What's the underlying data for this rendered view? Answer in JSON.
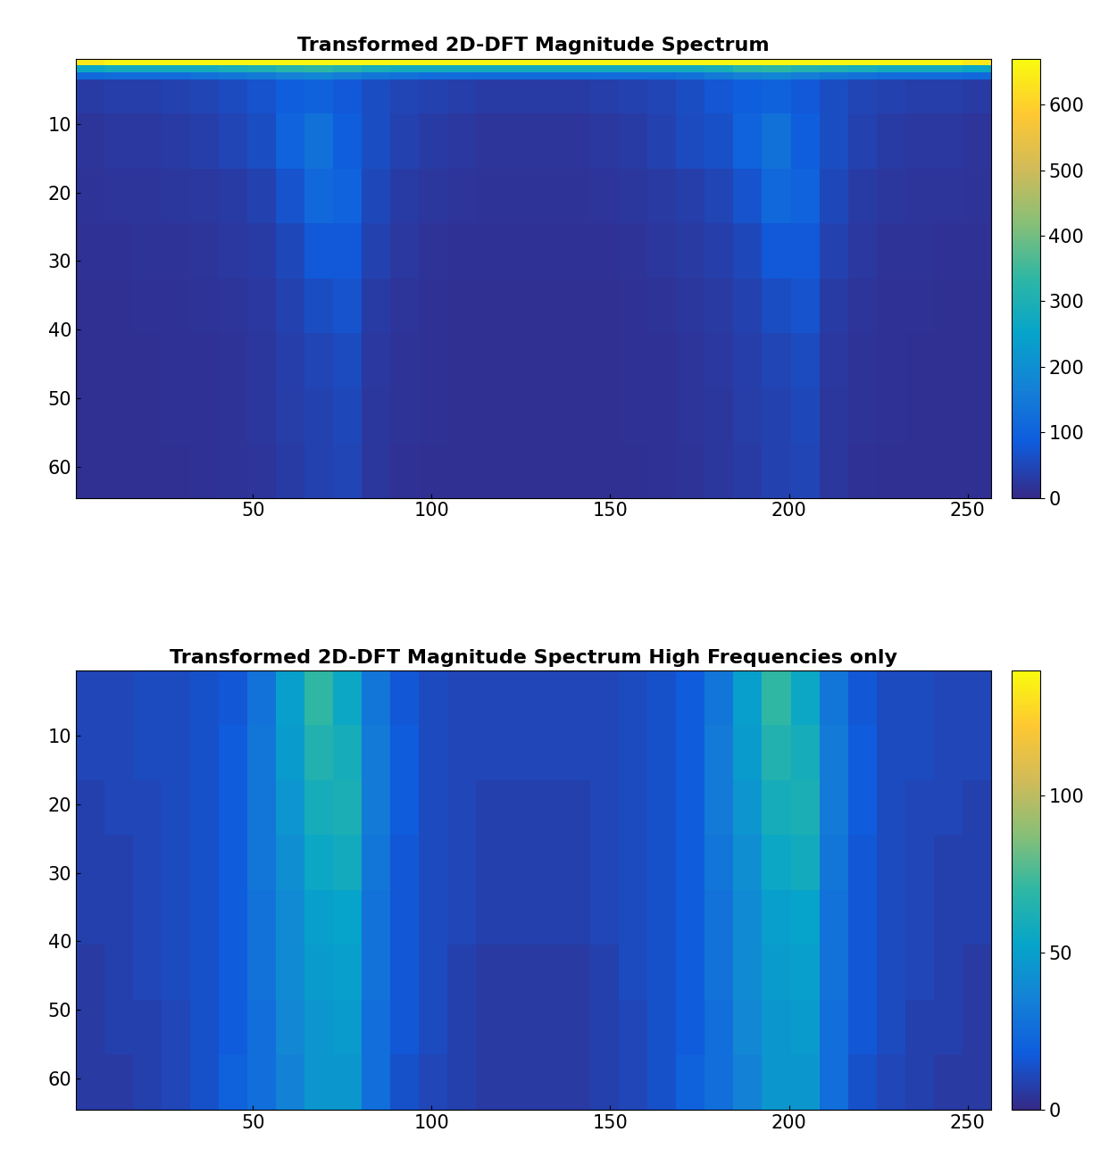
{
  "chart_data": [
    {
      "type": "heatmap",
      "title": "Transformed 2D-DFT Magnitude Spectrum",
      "xlim": [
        0.5,
        256.5
      ],
      "ylim": [
        64.5,
        0.5
      ],
      "xticks": [
        50,
        100,
        150,
        200,
        250
      ],
      "yticks": [
        10,
        20,
        30,
        40,
        50,
        60
      ],
      "x_edges": [
        0.5,
        8.5,
        16.5,
        24.5,
        32.5,
        40.5,
        48.5,
        56.5,
        64.5,
        72.5,
        80.5,
        88.5,
        96.5,
        104.5,
        112.5,
        120.5,
        128.5,
        136.5,
        144.5,
        152.5,
        160.5,
        168.5,
        176.5,
        184.5,
        192.5,
        200.5,
        208.5,
        216.5,
        224.5,
        232.5,
        240.5,
        248.5,
        256.5
      ],
      "y_edges": [
        0.5,
        1.5,
        2.5,
        3.5,
        8.5,
        16.5,
        24.5,
        32.5,
        40.5,
        48.5,
        56.5,
        64.5
      ],
      "cells": [
        [
          640,
          660,
          660,
          660,
          660,
          660,
          660,
          660,
          660,
          660,
          660,
          660,
          660,
          660,
          660,
          660,
          660,
          660,
          660,
          660,
          660,
          660,
          660,
          660,
          660,
          660,
          660,
          660,
          660,
          660,
          660,
          640
        ],
        [
          260,
          280,
          280,
          280,
          280,
          290,
          300,
          320,
          330,
          310,
          290,
          280,
          280,
          280,
          280,
          280,
          280,
          280,
          280,
          280,
          280,
          280,
          290,
          320,
          330,
          310,
          300,
          290,
          280,
          280,
          280,
          260
        ],
        [
          110,
          120,
          120,
          120,
          130,
          140,
          150,
          170,
          180,
          160,
          140,
          130,
          120,
          120,
          120,
          120,
          120,
          120,
          120,
          120,
          120,
          130,
          150,
          170,
          180,
          160,
          140,
          130,
          120,
          120,
          120,
          110
        ],
        [
          30,
          35,
          35,
          40,
          45,
          55,
          70,
          90,
          95,
          80,
          60,
          45,
          40,
          35,
          30,
          30,
          30,
          30,
          35,
          40,
          45,
          60,
          75,
          90,
          95,
          80,
          60,
          45,
          40,
          35,
          35,
          30
        ],
        [
          20,
          25,
          25,
          30,
          35,
          45,
          60,
          100,
          130,
          90,
          60,
          40,
          30,
          25,
          20,
          20,
          20,
          20,
          25,
          30,
          40,
          55,
          65,
          100,
          130,
          90,
          60,
          40,
          30,
          25,
          25,
          20
        ],
        [
          18,
          20,
          20,
          22,
          25,
          30,
          40,
          70,
          110,
          100,
          50,
          30,
          22,
          20,
          18,
          18,
          18,
          18,
          20,
          22,
          28,
          35,
          45,
          70,
          110,
          100,
          50,
          30,
          22,
          20,
          20,
          18
        ],
        [
          15,
          15,
          18,
          18,
          20,
          25,
          30,
          50,
          80,
          80,
          40,
          25,
          18,
          15,
          15,
          15,
          15,
          15,
          15,
          18,
          22,
          28,
          35,
          50,
          80,
          80,
          40,
          25,
          18,
          18,
          15,
          15
        ],
        [
          12,
          12,
          15,
          15,
          18,
          20,
          25,
          40,
          60,
          70,
          30,
          20,
          15,
          12,
          12,
          12,
          12,
          12,
          12,
          15,
          18,
          22,
          28,
          40,
          60,
          70,
          30,
          20,
          15,
          15,
          12,
          12
        ],
        [
          12,
          12,
          12,
          15,
          15,
          18,
          22,
          35,
          45,
          55,
          25,
          18,
          15,
          12,
          12,
          12,
          12,
          12,
          12,
          15,
          15,
          20,
          25,
          35,
          45,
          55,
          25,
          18,
          15,
          12,
          12,
          12
        ],
        [
          12,
          12,
          12,
          15,
          15,
          18,
          22,
          32,
          40,
          50,
          22,
          18,
          15,
          12,
          12,
          12,
          12,
          12,
          12,
          15,
          15,
          20,
          22,
          32,
          40,
          50,
          22,
          18,
          15,
          12,
          12,
          12
        ],
        [
          12,
          12,
          12,
          12,
          15,
          18,
          20,
          30,
          40,
          45,
          22,
          15,
          12,
          12,
          12,
          12,
          12,
          12,
          12,
          12,
          15,
          18,
          22,
          30,
          40,
          45,
          22,
          15,
          12,
          12,
          12,
          12
        ]
      ],
      "colorbar": {
        "range": [
          0,
          670
        ],
        "ticks": [
          0,
          100,
          200,
          300,
          400,
          500,
          600
        ]
      }
    },
    {
      "type": "heatmap",
      "title": "Transformed 2D-DFT Magnitude Spectrum High Frequencies only",
      "xlim": [
        0.5,
        256.5
      ],
      "ylim": [
        64.5,
        0.5
      ],
      "xticks": [
        50,
        100,
        150,
        200,
        250
      ],
      "yticks": [
        10,
        20,
        30,
        40,
        50,
        60
      ],
      "x_edges": [
        0.5,
        8.5,
        16.5,
        24.5,
        32.5,
        40.5,
        48.5,
        56.5,
        64.5,
        72.5,
        80.5,
        88.5,
        96.5,
        104.5,
        112.5,
        120.5,
        128.5,
        136.5,
        144.5,
        152.5,
        160.5,
        168.5,
        176.5,
        184.5,
        192.5,
        200.5,
        208.5,
        216.5,
        224.5,
        232.5,
        240.5,
        248.5,
        256.5
      ],
      "y_edges": [
        0.5,
        8.5,
        16.5,
        24.5,
        32.5,
        40.5,
        48.5,
        56.5,
        64.5
      ],
      "cells": [
        [
          10,
          10,
          12,
          12,
          14,
          16,
          28,
          50,
          70,
          55,
          30,
          16,
          12,
          10,
          10,
          10,
          10,
          10,
          10,
          12,
          14,
          18,
          30,
          50,
          70,
          55,
          30,
          16,
          12,
          12,
          10,
          10
        ],
        [
          10,
          10,
          12,
          12,
          14,
          18,
          30,
          48,
          65,
          60,
          32,
          18,
          12,
          10,
          10,
          10,
          10,
          10,
          10,
          12,
          14,
          18,
          32,
          48,
          65,
          60,
          32,
          18,
          12,
          12,
          10,
          10
        ],
        [
          8,
          10,
          10,
          12,
          14,
          18,
          30,
          45,
          60,
          62,
          32,
          18,
          12,
          10,
          8,
          8,
          8,
          8,
          10,
          12,
          14,
          18,
          32,
          45,
          60,
          62,
          32,
          18,
          12,
          10,
          10,
          8
        ],
        [
          8,
          8,
          10,
          12,
          14,
          18,
          30,
          42,
          55,
          58,
          30,
          16,
          12,
          10,
          8,
          8,
          8,
          8,
          10,
          12,
          14,
          18,
          30,
          42,
          55,
          58,
          30,
          16,
          12,
          10,
          8,
          8
        ],
        [
          8,
          8,
          10,
          12,
          14,
          18,
          28,
          40,
          50,
          52,
          28,
          16,
          12,
          10,
          8,
          8,
          8,
          8,
          10,
          12,
          14,
          18,
          28,
          40,
          50,
          52,
          28,
          16,
          12,
          10,
          8,
          8
        ],
        [
          6,
          8,
          10,
          12,
          14,
          18,
          28,
          40,
          48,
          50,
          28,
          16,
          12,
          8,
          6,
          6,
          6,
          6,
          8,
          12,
          14,
          18,
          28,
          40,
          48,
          50,
          28,
          16,
          12,
          10,
          8,
          6
        ],
        [
          6,
          8,
          8,
          10,
          14,
          18,
          26,
          38,
          46,
          48,
          26,
          16,
          12,
          8,
          6,
          6,
          6,
          6,
          8,
          10,
          14,
          18,
          26,
          38,
          46,
          48,
          26,
          16,
          12,
          8,
          8,
          6
        ],
        [
          6,
          6,
          8,
          10,
          14,
          20,
          26,
          36,
          46,
          46,
          26,
          14,
          10,
          8,
          6,
          6,
          6,
          6,
          8,
          10,
          14,
          20,
          26,
          36,
          46,
          46,
          26,
          14,
          10,
          8,
          6,
          6
        ]
      ],
      "colorbar": {
        "range": [
          0,
          140
        ],
        "ticks": [
          0,
          50,
          100
        ]
      }
    }
  ]
}
